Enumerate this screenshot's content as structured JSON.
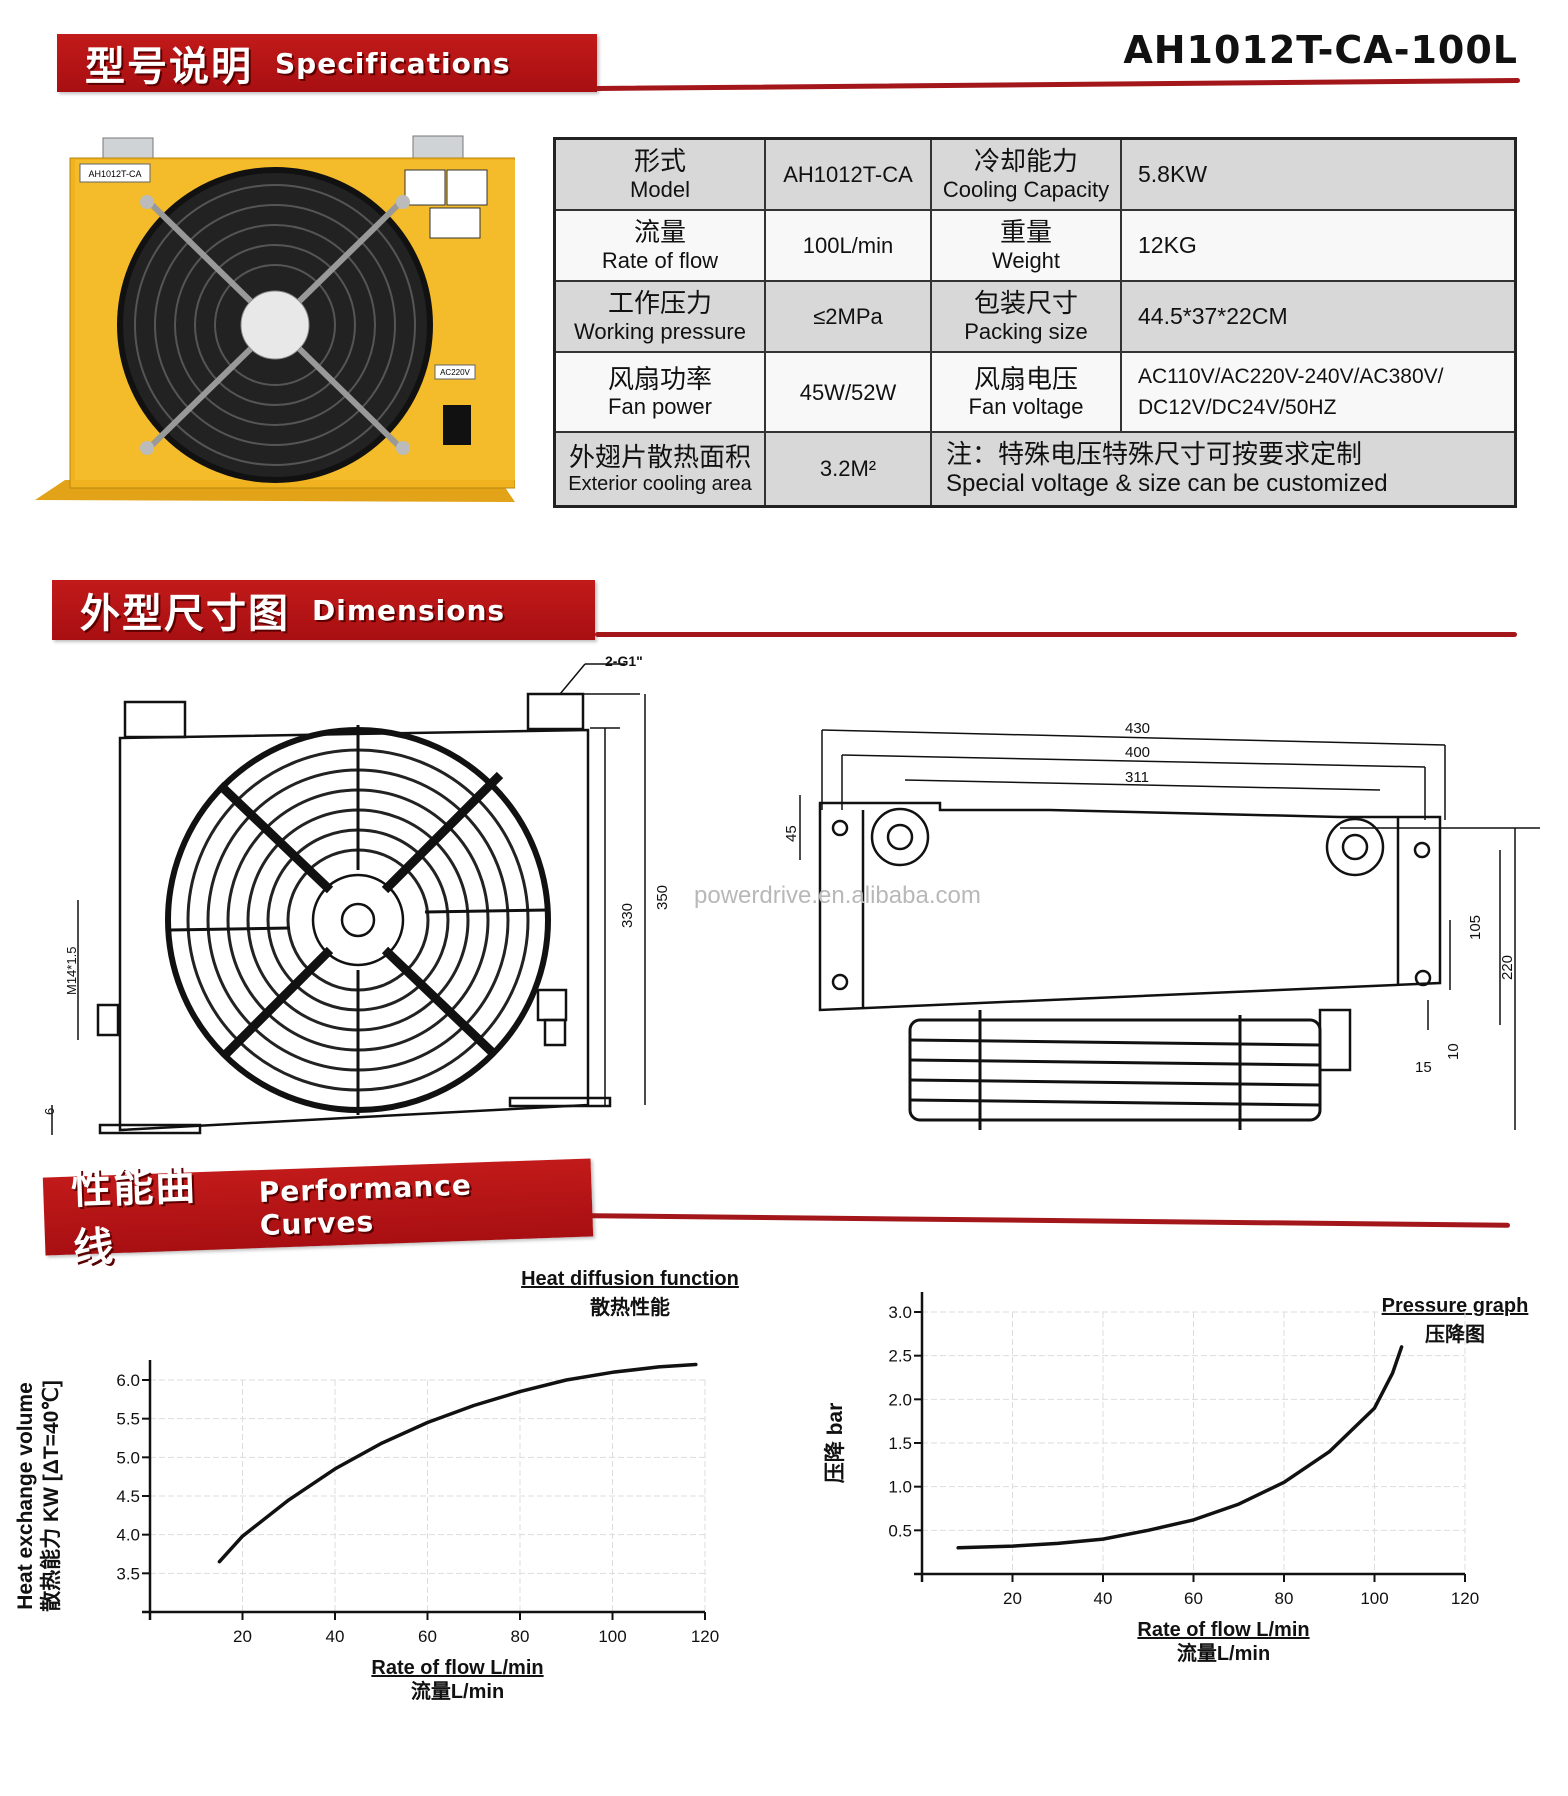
{
  "sections": {
    "specifications": {
      "zh": "型号说明",
      "en": "Specifications"
    },
    "dimensions": {
      "zh": "外型尺寸图",
      "en": "Dimensions"
    },
    "performance": {
      "zh": "性能曲线",
      "en": "Performance Curves"
    }
  },
  "model_title": "AH1012T-CA-100L",
  "product_photo": {
    "nameplate": "AH1012T-CA",
    "voltage_label": "AC220V"
  },
  "spec_table": {
    "rows": [
      [
        {
          "zh": "形式",
          "en": "Model"
        },
        {
          "value": "AH1012T-CA"
        },
        {
          "zh": "冷却能力",
          "en": "Cooling Capacity"
        },
        {
          "value": "5.8KW"
        }
      ],
      [
        {
          "zh": "流量",
          "en": "Rate of flow"
        },
        {
          "value": "100L/min"
        },
        {
          "zh": "重量",
          "en": "Weight"
        },
        {
          "value": "12KG"
        }
      ],
      [
        {
          "zh": "工作压力",
          "en": "Working pressure"
        },
        {
          "value": "≤2MPa"
        },
        {
          "zh": "包装尺寸",
          "en": "Packing size"
        },
        {
          "value": "44.5*37*22CM"
        }
      ],
      [
        {
          "zh": "风扇功率",
          "en": "Fan power"
        },
        {
          "value": "45W/52W"
        },
        {
          "zh": "风扇电压",
          "en": "Fan voltage"
        },
        {
          "value": "AC110V/AC220V-240V/AC380V/",
          "value2": "DC12V/DC24V/50HZ"
        }
      ],
      [
        {
          "zh": "外翅片散热面积",
          "en": "Exterior cooling area"
        },
        {
          "value": "3.2M²"
        },
        {
          "zh": "注：特殊电压特殊尺寸可按要求定制",
          "en": "Special voltage & size can be customized"
        }
      ]
    ]
  },
  "dimensions": {
    "front": {
      "port": "2-G1\"",
      "height_inner": "330",
      "height_outer": "350",
      "drain": "M14*1.5",
      "foot": "6"
    },
    "side": {
      "w1": "430",
      "w2": "400",
      "w3": "311",
      "h_port": "45",
      "h1": "105",
      "h2": "220",
      "d1": "10",
      "d2": "15"
    }
  },
  "watermark": "powerdrive.en.alibaba.com",
  "chart_data": [
    {
      "type": "line",
      "title": "Heat diffusion function",
      "title_zh": "散热性能",
      "xlabel": "Rate of flow L/min",
      "xlabel_zh": "流量L/min",
      "ylabel": "Heat exchange volume",
      "ylabel_zh": "散热能力 KW [ΔT=40℃]",
      "xlim": [
        0,
        120
      ],
      "ylim": [
        3.0,
        6.0
      ],
      "xticks": [
        "20",
        "40",
        "60",
        "80",
        "100",
        "120"
      ],
      "yticks": [
        "3.5",
        "4.0",
        "4.5",
        "5.0",
        "5.5",
        "6.0"
      ],
      "grid": true,
      "x": [
        15,
        20,
        30,
        40,
        50,
        60,
        70,
        80,
        90,
        100,
        110,
        118
      ],
      "y": [
        3.65,
        3.98,
        4.45,
        4.85,
        5.18,
        5.45,
        5.67,
        5.85,
        6.0,
        6.1,
        6.17,
        6.2
      ]
    },
    {
      "type": "line",
      "title": "Pressure graph",
      "title_zh": "压降图",
      "xlabel": "Rate of flow L/min",
      "xlabel_zh": "流量L/min",
      "ylabel": "压降 bar",
      "xlim": [
        0,
        120
      ],
      "ylim": [
        0,
        3.0
      ],
      "xticks": [
        "20",
        "40",
        "60",
        "80",
        "100",
        "120"
      ],
      "yticks": [
        "0.5",
        "1.0",
        "1.5",
        "2.0",
        "2.5",
        "3.0"
      ],
      "grid": true,
      "x": [
        8,
        20,
        30,
        40,
        50,
        60,
        70,
        80,
        90,
        100,
        104,
        106
      ],
      "y": [
        0.3,
        0.32,
        0.35,
        0.4,
        0.5,
        0.62,
        0.8,
        1.05,
        1.4,
        1.9,
        2.3,
        2.6
      ]
    }
  ],
  "colors": {
    "brand_red": "#b3151a",
    "table_gray": "#d8d8d8",
    "product_yellow": "#f0b21f"
  }
}
